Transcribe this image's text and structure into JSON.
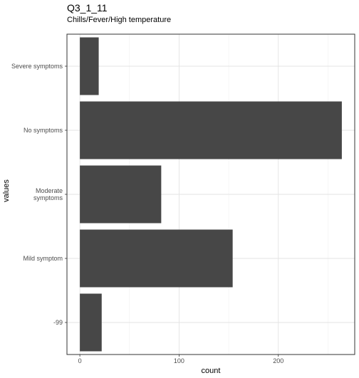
{
  "chart_data": {
    "type": "bar",
    "orientation": "horizontal",
    "title": "Q3_1_11",
    "subtitle": "Chills/Fever/High temperature",
    "xlabel": "count",
    "ylabel": "values",
    "categories": [
      "Severe symptoms",
      "No symptoms",
      "Moderate symptoms",
      "Mild symptom",
      "-99"
    ],
    "category_lines": [
      [
        "Severe symptoms"
      ],
      [
        "No symptoms"
      ],
      [
        "Moderate",
        "symptoms"
      ],
      [
        "Mild symptom"
      ],
      [
        "-99"
      ]
    ],
    "values": [
      19,
      264,
      82,
      154,
      22
    ],
    "xlim": [
      -13,
      277
    ],
    "xticks": [
      0,
      100,
      200
    ],
    "grid": true,
    "bar_color": "#474747"
  }
}
